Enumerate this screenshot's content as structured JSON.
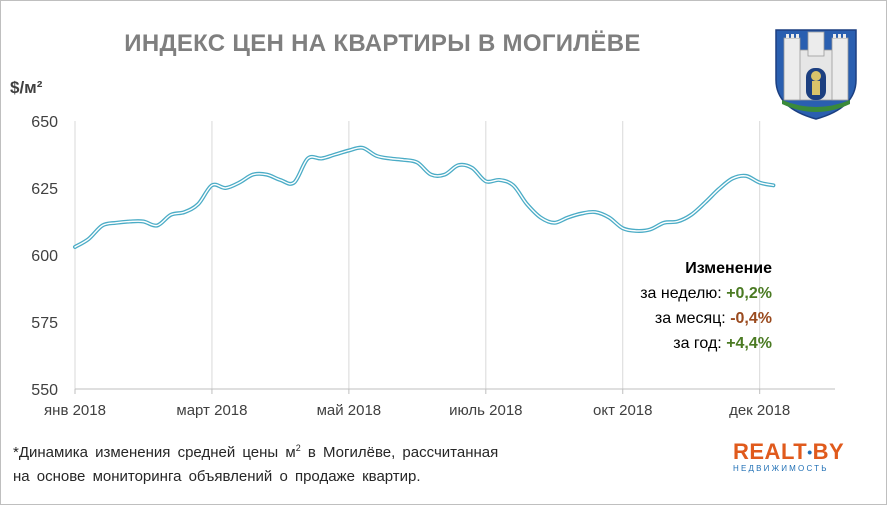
{
  "chart_data": {
    "type": "line",
    "title": "ИНДЕКС ЦЕН НА КВАРТИРЫ В МОГИЛЁВЕ",
    "ylabel": "$/м²",
    "ylim": [
      550,
      650
    ],
    "yticks": [
      550,
      575,
      600,
      625,
      650
    ],
    "xlim": [
      0,
      11.1
    ],
    "xticks": [
      {
        "x": 0,
        "label": "янв 2018"
      },
      {
        "x": 2,
        "label": "март 2018"
      },
      {
        "x": 4,
        "label": "май 2018"
      },
      {
        "x": 6,
        "label": "июль 2018"
      },
      {
        "x": 8,
        "label": "окт 2018"
      },
      {
        "x": 10,
        "label": "дек 2018"
      }
    ],
    "grid": "vertical",
    "color": "#4bacc6",
    "series": [
      {
        "x": [
          0,
          0.2,
          0.4,
          0.6,
          0.8,
          1.0,
          1.2,
          1.4,
          1.6,
          1.8,
          2.0,
          2.2,
          2.4,
          2.6,
          2.8,
          3.0,
          3.2,
          3.4,
          3.6,
          3.8,
          4.0,
          4.2,
          4.4,
          4.6,
          4.8,
          5.0,
          5.2,
          5.4,
          5.6,
          5.8,
          6.0,
          6.2,
          6.4,
          6.6,
          6.8,
          7.0,
          7.2,
          7.4,
          7.6,
          7.8,
          8.0,
          8.2,
          8.4,
          8.6,
          8.8,
          9.0,
          9.2,
          9.4,
          9.6,
          9.8,
          10.0,
          10.2
        ],
        "y": [
          603,
          606,
          611,
          612,
          612.5,
          612.5,
          611,
          615,
          616,
          619,
          626,
          625,
          627,
          630,
          630,
          628,
          627,
          636,
          636,
          637.5,
          639,
          640,
          637,
          636,
          635.5,
          634.5,
          630,
          630,
          633.5,
          632.5,
          627.5,
          628,
          626,
          619,
          614,
          612,
          614,
          615.5,
          616,
          614,
          610,
          609,
          609.5,
          612,
          612.5,
          615,
          619.5,
          624.5,
          628.5,
          629.5,
          627,
          626
        ]
      }
    ]
  },
  "change": {
    "header": "Изменение",
    "rows": [
      {
        "label": "за неделю:",
        "value": "+0,2%",
        "color": "#4a7a22"
      },
      {
        "label": "за месяц:",
        "value": "-0,4%",
        "color": "#9a4a1e"
      },
      {
        "label": "за год:",
        "value": "+4,4%",
        "color": "#4a7a22"
      }
    ]
  },
  "footnote": {
    "line1_pre": "*Динамика изменения средней цены м",
    "line1_sup": "2",
    "line1_post": " в Могилёве, рассчитанная",
    "line2": "на основе мониторинга объявлений о продаже квартир."
  },
  "logo": {
    "main": "REALT",
    "dot": "•",
    "main2": "BY",
    "sub": "НЕДВИЖИМОСТЬ"
  },
  "emblem": "mogilev-coat-of-arms"
}
